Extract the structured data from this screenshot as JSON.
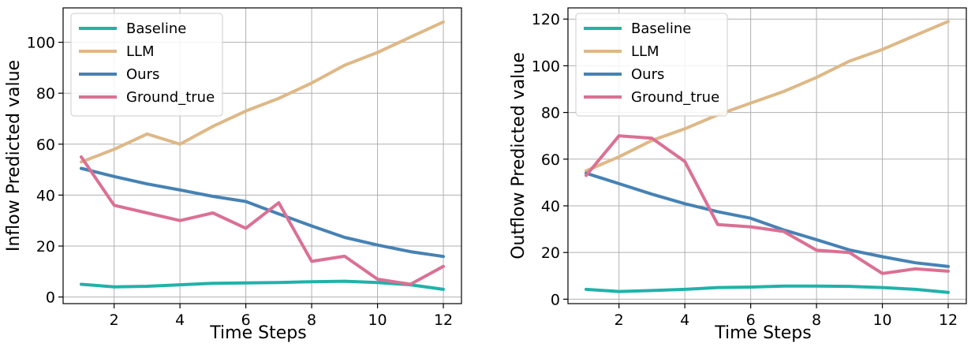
{
  "chart_data": [
    {
      "type": "line",
      "title": "",
      "xlabel": "Time Steps",
      "ylabel": "Inflow Predicted value",
      "x": [
        1,
        2,
        3,
        4,
        5,
        6,
        7,
        8,
        9,
        10,
        11,
        12
      ],
      "xticks": [
        "2",
        "4",
        "6",
        "8",
        "10",
        "12"
      ],
      "yticks": [
        "0",
        "20",
        "40",
        "60",
        "80",
        "100"
      ],
      "xlim": [
        0.45,
        12.55
      ],
      "ylim": [
        -2.6,
        113.5
      ],
      "legend_position": "upper-left",
      "grid": true,
      "series": [
        {
          "name": "Baseline",
          "color": "#20b2aa",
          "values": [
            5,
            4,
            4.2,
            4.8,
            5.4,
            5.5,
            5.7,
            6.0,
            6.2,
            5.7,
            4.8,
            3.0
          ]
        },
        {
          "name": "LLM",
          "color": "#deb887",
          "values": [
            53,
            58,
            64,
            60,
            67,
            73,
            78,
            84,
            91,
            96,
            102,
            108
          ]
        },
        {
          "name": "Ours",
          "color": "#4682b4",
          "values": [
            50.5,
            47.3,
            44.4,
            42,
            39.5,
            37.5,
            32.6,
            27.9,
            23.4,
            20.4,
            17.8,
            15.9
          ]
        },
        {
          "name": "Ground_true",
          "color": "#db7093",
          "values": [
            55,
            36,
            33,
            30,
            33,
            27,
            37,
            14,
            16,
            7,
            5,
            12
          ]
        }
      ]
    },
    {
      "type": "line",
      "title": "",
      "xlabel": "Time Steps",
      "ylabel": "Outflow Predicted value",
      "x": [
        1,
        2,
        3,
        4,
        5,
        6,
        7,
        8,
        9,
        10,
        11,
        12
      ],
      "xticks": [
        "2",
        "4",
        "6",
        "8",
        "10",
        "12"
      ],
      "yticks": [
        "0",
        "20",
        "40",
        "60",
        "80",
        "100",
        "120"
      ],
      "xlim": [
        0.45,
        12.55
      ],
      "ylim": [
        -1.9,
        124.8
      ],
      "legend_position": "upper-left",
      "grid": true,
      "series": [
        {
          "name": "Baseline",
          "color": "#20b2aa",
          "values": [
            4.2,
            3.3,
            3.7,
            4.2,
            5.0,
            5.2,
            5.6,
            5.6,
            5.5,
            5.0,
            4.2,
            2.9
          ]
        },
        {
          "name": "LLM",
          "color": "#deb887",
          "values": [
            55,
            61,
            68,
            73,
            79,
            84,
            89,
            95,
            102,
            107,
            113,
            119
          ]
        },
        {
          "name": "Ours",
          "color": "#4682b4",
          "values": [
            54,
            49.5,
            45,
            40.9,
            37.5,
            34.7,
            29.7,
            25.5,
            21.1,
            18.2,
            15.6,
            14
          ]
        },
        {
          "name": "Ground_true",
          "color": "#db7093",
          "values": [
            53,
            70,
            69,
            59,
            32,
            31,
            29,
            21,
            20,
            11,
            13,
            12
          ]
        }
      ]
    }
  ]
}
